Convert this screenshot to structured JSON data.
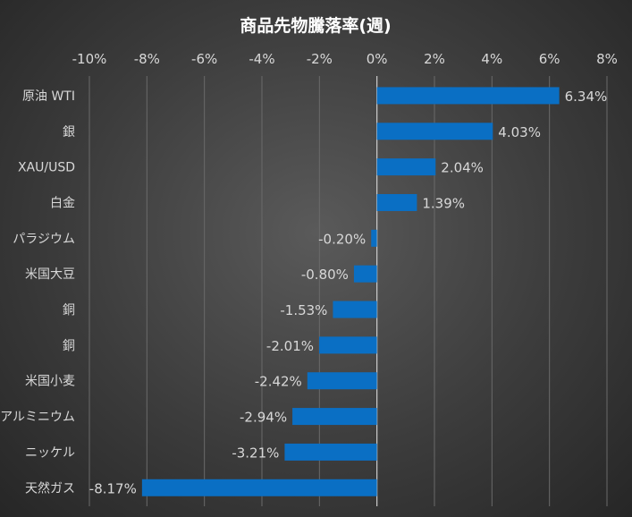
{
  "chart_data": {
    "type": "bar",
    "orientation": "horizontal",
    "title": "商品先物騰落率(週)",
    "xlim": [
      -0.1,
      0.08
    ],
    "x_ticks": [
      -0.1,
      -0.08,
      -0.06,
      -0.04,
      -0.02,
      0,
      0.02,
      0.04,
      0.06,
      0.08
    ],
    "x_tick_labels": [
      "-10%",
      "-8%",
      "-6%",
      "-4%",
      "-2%",
      "0%",
      "2%",
      "4%",
      "6%",
      "8%"
    ],
    "axis_position": "top",
    "grid": true,
    "categories": [
      "原油 WTI",
      "銀",
      "XAU/USD",
      "白金",
      "パラジウム",
      "米国大豆",
      "銅",
      "銅",
      "米国小麦",
      "アルミニウム",
      "ニッケル",
      "天然ガス"
    ],
    "values": [
      0.0634,
      0.0403,
      0.0204,
      0.0139,
      -0.002,
      -0.008,
      -0.0153,
      -0.0201,
      -0.0242,
      -0.0294,
      -0.0321,
      -0.0817
    ],
    "data_labels": [
      "6.34%",
      "4.03%",
      "2.04%",
      "1.39%",
      "-0.20%",
      "-0.80%",
      "-1.53%",
      "-2.01%",
      "-2.42%",
      "-2.94%",
      "-3.21%",
      "-8.17%"
    ],
    "colors": {
      "bar": "#0a6fc4",
      "grid": "#6a6a6a",
      "zero_line": "#cfcfcf",
      "text": "#d8d8d8",
      "title": "#ffffff"
    }
  }
}
